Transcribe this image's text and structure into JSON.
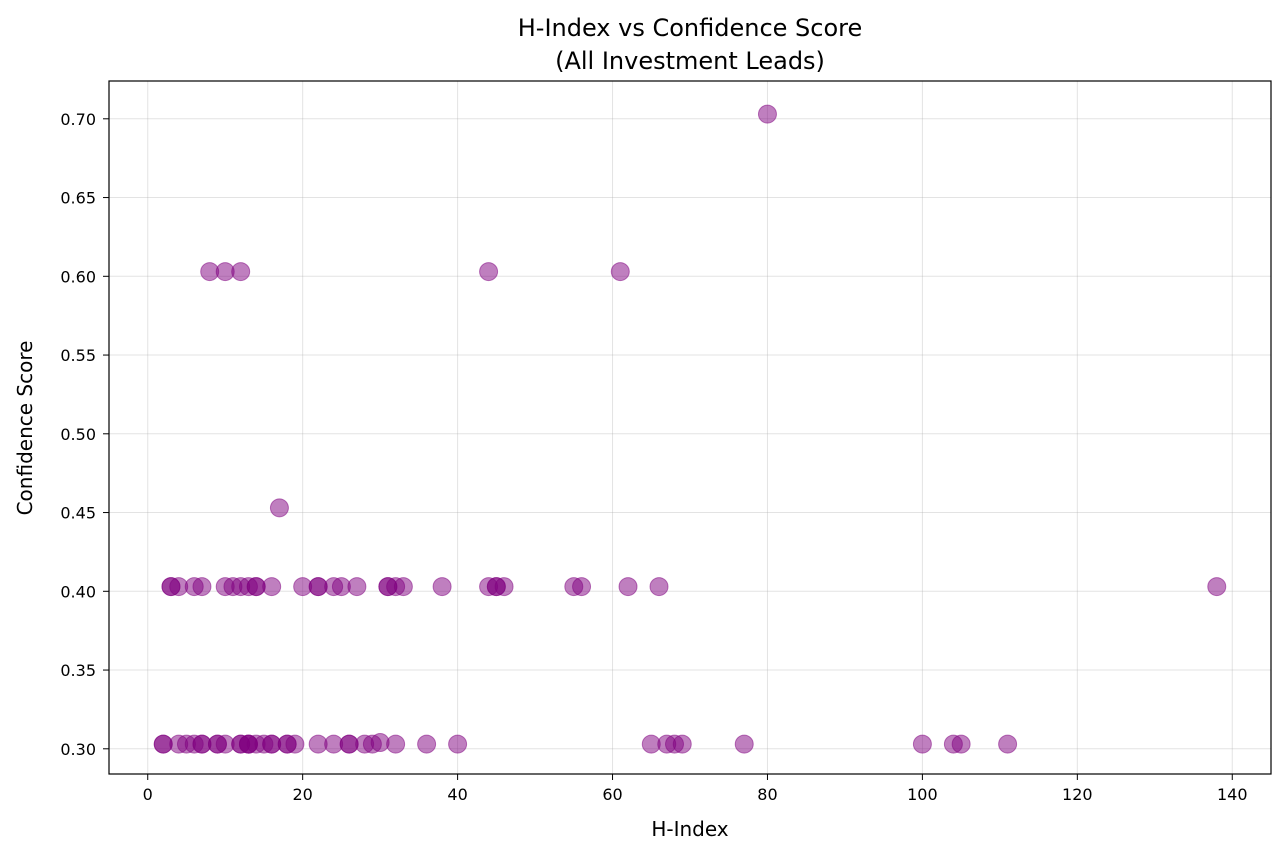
{
  "chart_data": {
    "type": "scatter",
    "title_lines": [
      "H-Index vs Confidence Score",
      "(All Investment Leads)"
    ],
    "xlabel": "H-Index",
    "ylabel": "Confidence Score",
    "xlim": [
      -5,
      145
    ],
    "ylim": [
      0.284,
      0.724
    ],
    "xticks": [
      0,
      20,
      40,
      60,
      80,
      100,
      120,
      140
    ],
    "yticks": [
      0.3,
      0.35,
      0.4,
      0.45,
      0.5,
      0.55,
      0.6,
      0.65,
      0.7
    ],
    "xtick_labels": [
      "0",
      "20",
      "40",
      "60",
      "80",
      "100",
      "120",
      "140"
    ],
    "ytick_labels": [
      "0.30",
      "0.35",
      "0.40",
      "0.45",
      "0.50",
      "0.55",
      "0.60",
      "0.65",
      "0.70"
    ],
    "grid": true,
    "marker_color": "#800080",
    "marker_opacity": 0.5,
    "points": [
      [
        80,
        0.703
      ],
      [
        8,
        0.603
      ],
      [
        10,
        0.603
      ],
      [
        12,
        0.603
      ],
      [
        44,
        0.603
      ],
      [
        61,
        0.603
      ],
      [
        17,
        0.453
      ],
      [
        3,
        0.403
      ],
      [
        3,
        0.403
      ],
      [
        4,
        0.403
      ],
      [
        6,
        0.403
      ],
      [
        7,
        0.403
      ],
      [
        10,
        0.403
      ],
      [
        11,
        0.403
      ],
      [
        12,
        0.403
      ],
      [
        13,
        0.403
      ],
      [
        14,
        0.403
      ],
      [
        14,
        0.403
      ],
      [
        16,
        0.403
      ],
      [
        20,
        0.403
      ],
      [
        22,
        0.403
      ],
      [
        22,
        0.403
      ],
      [
        24,
        0.403
      ],
      [
        25,
        0.403
      ],
      [
        27,
        0.403
      ],
      [
        31,
        0.403
      ],
      [
        31,
        0.403
      ],
      [
        32,
        0.403
      ],
      [
        33,
        0.403
      ],
      [
        38,
        0.403
      ],
      [
        44,
        0.403
      ],
      [
        45,
        0.403
      ],
      [
        45,
        0.403
      ],
      [
        46,
        0.403
      ],
      [
        55,
        0.403
      ],
      [
        56,
        0.403
      ],
      [
        62,
        0.403
      ],
      [
        66,
        0.403
      ],
      [
        138,
        0.403
      ],
      [
        2,
        0.303
      ],
      [
        2,
        0.303
      ],
      [
        4,
        0.303
      ],
      [
        5,
        0.303
      ],
      [
        6,
        0.303
      ],
      [
        7,
        0.303
      ],
      [
        7,
        0.303
      ],
      [
        9,
        0.303
      ],
      [
        9,
        0.303
      ],
      [
        10,
        0.303
      ],
      [
        12,
        0.303
      ],
      [
        12,
        0.303
      ],
      [
        13,
        0.303
      ],
      [
        13,
        0.303
      ],
      [
        13,
        0.303
      ],
      [
        14,
        0.303
      ],
      [
        15,
        0.303
      ],
      [
        16,
        0.303
      ],
      [
        16,
        0.303
      ],
      [
        18,
        0.303
      ],
      [
        18,
        0.303
      ],
      [
        19,
        0.303
      ],
      [
        22,
        0.303
      ],
      [
        24,
        0.303
      ],
      [
        26,
        0.303
      ],
      [
        26,
        0.303
      ],
      [
        28,
        0.303
      ],
      [
        29,
        0.303
      ],
      [
        30,
        0.304
      ],
      [
        32,
        0.303
      ],
      [
        36,
        0.303
      ],
      [
        40,
        0.303
      ],
      [
        65,
        0.303
      ],
      [
        67,
        0.303
      ],
      [
        68,
        0.303
      ],
      [
        69,
        0.303
      ],
      [
        77,
        0.303
      ],
      [
        100,
        0.303
      ],
      [
        104,
        0.303
      ],
      [
        105,
        0.303
      ],
      [
        111,
        0.303
      ]
    ]
  }
}
